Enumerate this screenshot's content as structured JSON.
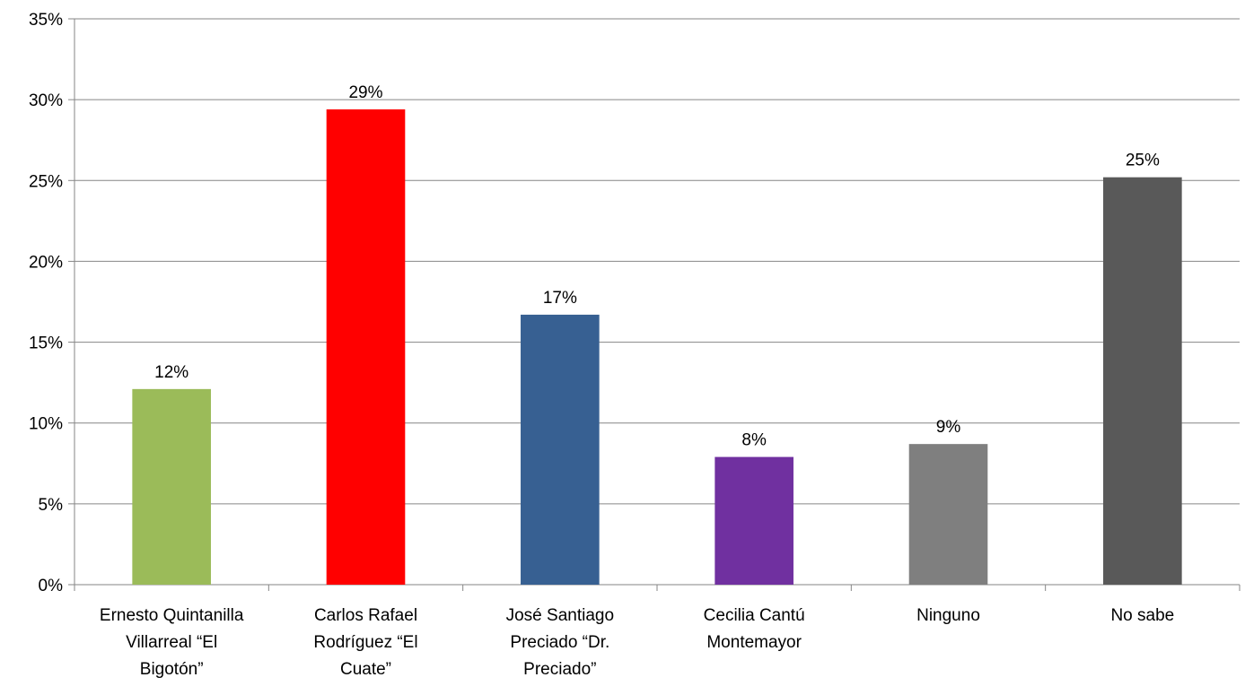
{
  "chart_data": {
    "type": "bar",
    "title": "",
    "xlabel": "",
    "ylabel": "",
    "ylim": [
      0,
      35
    ],
    "y_ticks": [
      0,
      5,
      10,
      15,
      20,
      25,
      30,
      35
    ],
    "y_tick_labels": [
      "0%",
      "5%",
      "10%",
      "15%",
      "20%",
      "25%",
      "30%",
      "35%"
    ],
    "grid": true,
    "legend": "none",
    "categories": [
      [
        "Ernesto Quintanilla",
        "Villarreal “El",
        "Bigotón”"
      ],
      [
        "Carlos Rafael",
        "Rodríguez “El",
        "Cuate”"
      ],
      [
        "José Santiago",
        "Preciado “Dr.",
        "Preciado”"
      ],
      [
        "Cecilia Cantú",
        "Montemayor"
      ],
      [
        "Ninguno"
      ],
      [
        "No sabe"
      ]
    ],
    "values": [
      12.1,
      29.4,
      16.7,
      7.9,
      8.7,
      25.2
    ],
    "data_labels": [
      "12%",
      "29%",
      "17%",
      "8%",
      "9%",
      "25%"
    ],
    "colors": [
      "#9BBB59",
      "#FF0000",
      "#376092",
      "#7030A0",
      "#7F7F7F",
      "#595959"
    ],
    "grid_color": "#868686",
    "axis_color": "#868686"
  }
}
